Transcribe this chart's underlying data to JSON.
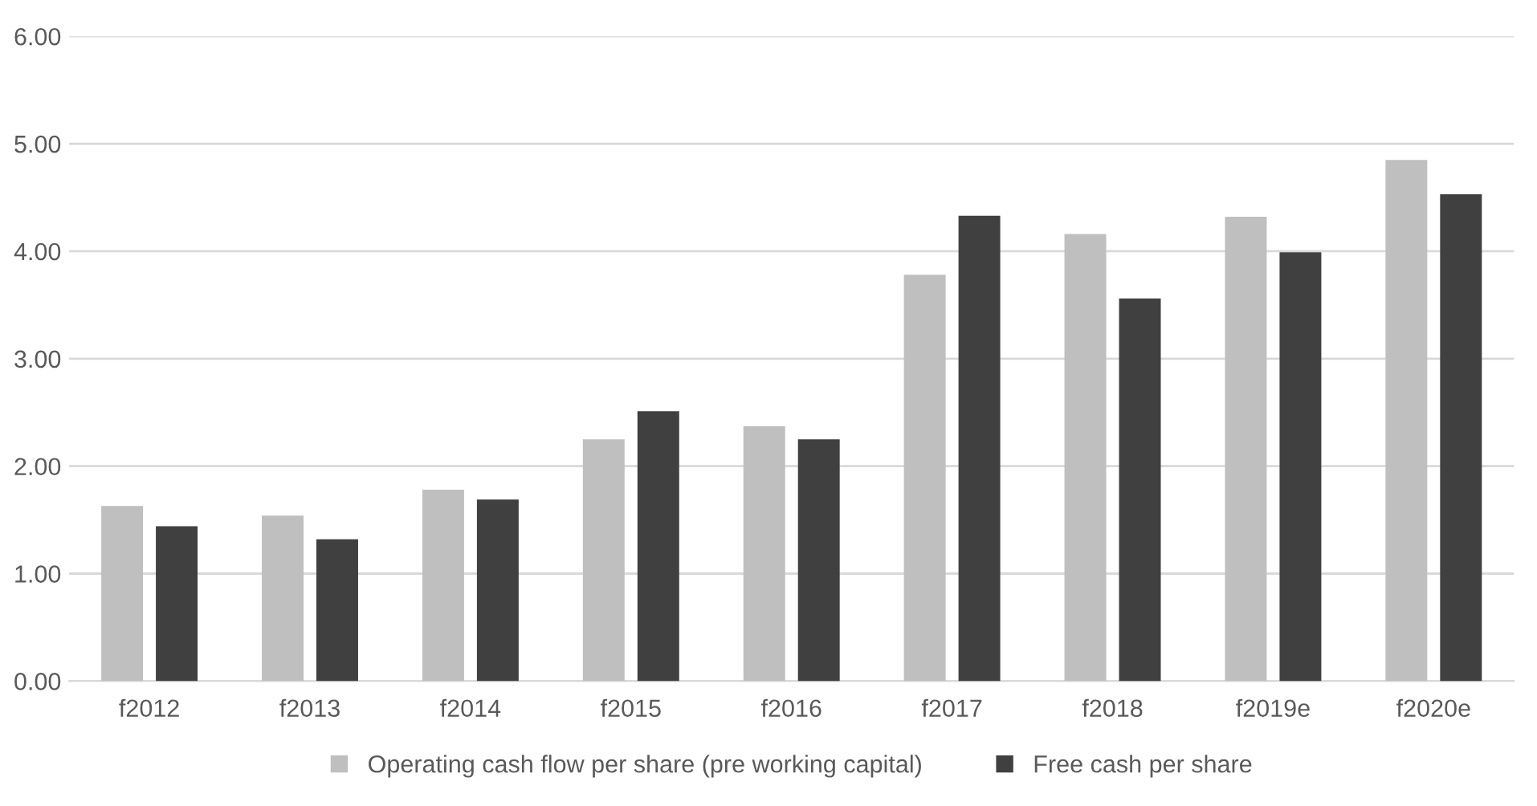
{
  "chart_data": {
    "type": "bar",
    "categories": [
      "f2012",
      "f2013",
      "f2014",
      "f2015",
      "f2016",
      "f2017",
      "f2018",
      "f2019e",
      "f2020e"
    ],
    "series": [
      {
        "name": "Operating cash flow per share (pre working capital)",
        "color": "#bfbfbf",
        "values": [
          1.63,
          1.54,
          1.78,
          2.25,
          2.37,
          3.78,
          4.16,
          4.32,
          4.85
        ]
      },
      {
        "name": "Free cash per share",
        "color": "#404040",
        "values": [
          1.44,
          1.32,
          1.69,
          2.51,
          2.25,
          4.33,
          3.56,
          3.99,
          4.53
        ]
      }
    ],
    "ylim": [
      0,
      6
    ],
    "yticks": [
      {
        "value": 0,
        "label": "0.00"
      },
      {
        "value": 1,
        "label": "1.00"
      },
      {
        "value": 2,
        "label": "2.00"
      },
      {
        "value": 3,
        "label": "3.00"
      },
      {
        "value": 4,
        "label": "4.00"
      },
      {
        "value": 5,
        "label": "5.00"
      },
      {
        "value": 6,
        "label": "6.00"
      }
    ],
    "grid": "y",
    "legend": "bottom"
  }
}
